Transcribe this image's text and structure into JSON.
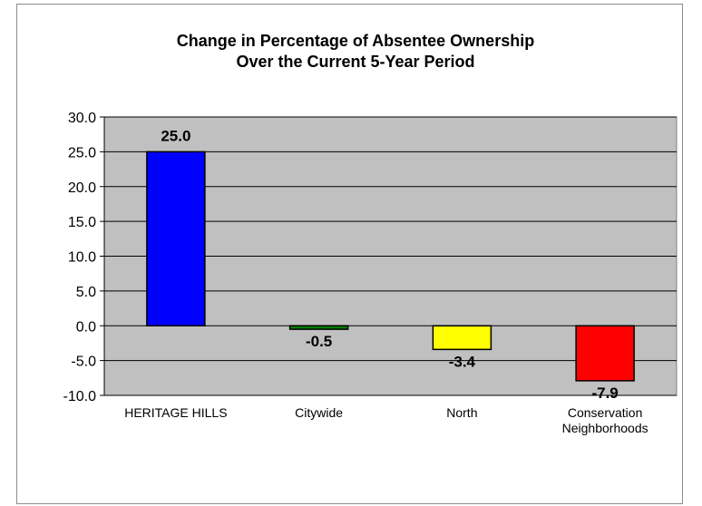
{
  "chart_data": {
    "type": "bar",
    "title": [
      "Change in Percentage of Absentee Ownership",
      "Over the Current 5-Year Period"
    ],
    "categories": [
      [
        "HERITAGE HILLS"
      ],
      [
        "Citywide"
      ],
      [
        "North"
      ],
      [
        "Conservation",
        "Neighborhoods"
      ]
    ],
    "values": [
      25.0,
      -0.5,
      -3.4,
      -7.9
    ],
    "data_labels": [
      "25.0",
      "-0.5",
      "-3.4",
      "-7.9"
    ],
    "bar_colors": [
      "#0000ff",
      "#008000",
      "#ffff00",
      "#ff0000"
    ],
    "ylim": [
      -10,
      30
    ],
    "yticks": [
      30,
      25,
      20,
      15,
      10,
      5,
      0,
      -5,
      -10
    ],
    "ytick_labels": [
      "30.0",
      "25.0",
      "20.0",
      "15.0",
      "10.0",
      "5.0",
      "0.0",
      "-5.0",
      "-10.0"
    ],
    "grid": true,
    "plot_background": "#c0c0c0",
    "legend": "none"
  }
}
